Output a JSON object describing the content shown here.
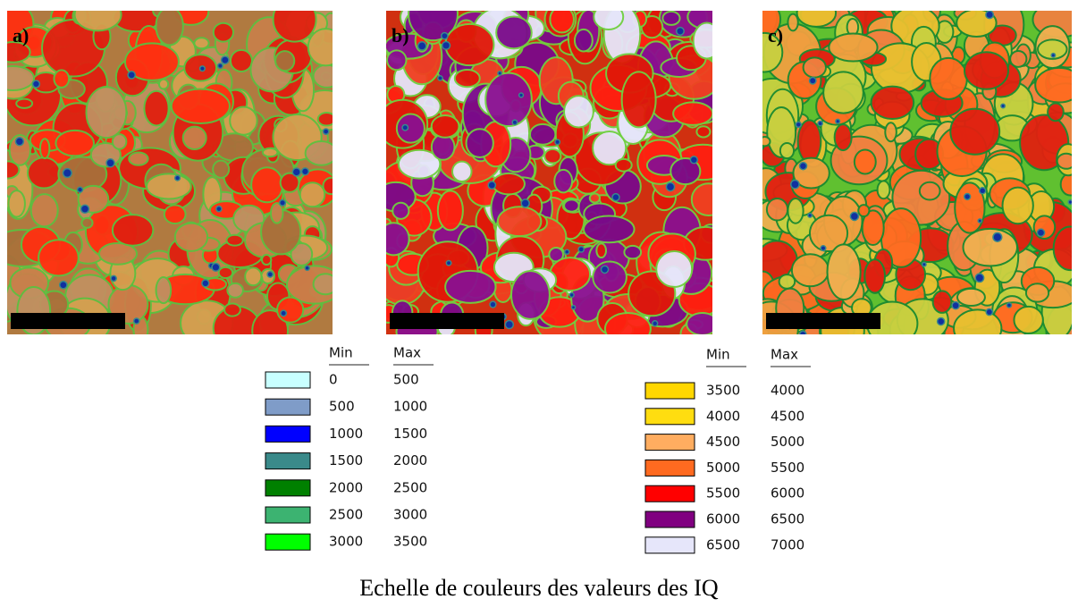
{
  "panels": [
    {
      "label": "a)"
    },
    {
      "label": "b)"
    },
    {
      "label": "c)"
    }
  ],
  "legend": [
    {
      "headers": [
        "Min",
        "Max"
      ],
      "rows": [
        {
          "color": "#c8ffff",
          "min": 0,
          "max": 500
        },
        {
          "color": "#7f9cc8",
          "min": 500,
          "max": 1000
        },
        {
          "color": "#0000ff",
          "min": 1000,
          "max": 1500
        },
        {
          "color": "#3a8a8a",
          "min": 1500,
          "max": 2000
        },
        {
          "color": "#008000",
          "min": 2000,
          "max": 2500
        },
        {
          "color": "#3cb371",
          "min": 2500,
          "max": 3000
        },
        {
          "color": "#00ff00",
          "min": 3000,
          "max": 3500
        }
      ]
    },
    {
      "headers": [
        "Min",
        "Max"
      ],
      "rows": [
        {
          "color": "#ffd700",
          "min": 3500,
          "max": 4000
        },
        {
          "color": "#ffdd10",
          "min": 4000,
          "max": 4500
        },
        {
          "color": "#ffad60",
          "min": 4500,
          "max": 5000
        },
        {
          "color": "#ff6a20",
          "min": 5000,
          "max": 5500
        },
        {
          "color": "#ff0000",
          "min": 5500,
          "max": 6000
        },
        {
          "color": "#800080",
          "min": 6000,
          "max": 6500
        },
        {
          "color": "#e6e6fa",
          "min": 6500,
          "max": 7000
        }
      ]
    }
  ],
  "caption": "Echelle de couleurs des valeurs des IQ"
}
